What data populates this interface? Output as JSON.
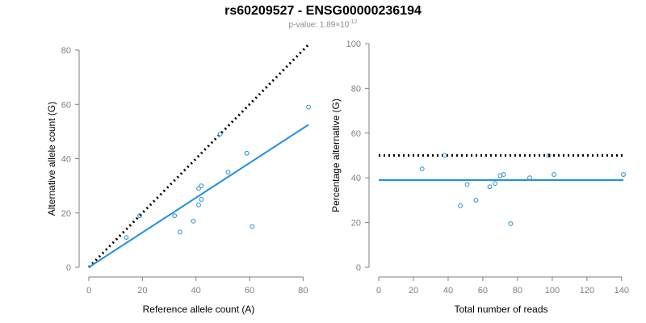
{
  "title": "rs60209527 - ENSG00000236194",
  "subtitle": {
    "prefix": "p-value: 1.89×10",
    "exponent": "-12"
  },
  "colors": {
    "points": "#1f8fd6",
    "fit_line": "#1f8fe6",
    "reference_line": "#000000",
    "axis": "#7f7f7f"
  },
  "chart_data": [
    {
      "type": "scatter",
      "xlabel": "Reference allele count (A)",
      "ylabel": "Alternative allele count (G)",
      "xlim": [
        0,
        82
      ],
      "ylim": [
        0,
        80
      ],
      "xticks": [
        0,
        20,
        40,
        60,
        80
      ],
      "yticks": [
        0,
        20,
        40,
        60,
        80
      ],
      "grid": false,
      "points": [
        {
          "x": 14,
          "y": 11
        },
        {
          "x": 19,
          "y": 19
        },
        {
          "x": 32,
          "y": 19
        },
        {
          "x": 34,
          "y": 13
        },
        {
          "x": 39,
          "y": 17
        },
        {
          "x": 41,
          "y": 23
        },
        {
          "x": 41,
          "y": 29
        },
        {
          "x": 42,
          "y": 30
        },
        {
          "x": 42,
          "y": 25
        },
        {
          "x": 49,
          "y": 49
        },
        {
          "x": 52,
          "y": 35
        },
        {
          "x": 59,
          "y": 42
        },
        {
          "x": 61,
          "y": 15
        },
        {
          "x": 82,
          "y": 59
        }
      ],
      "fit_line": {
        "x": [
          0,
          82
        ],
        "y": [
          0,
          52.5
        ]
      },
      "reference_line": {
        "x": [
          0,
          82
        ],
        "y": [
          0,
          82
        ],
        "style": "dotted"
      }
    },
    {
      "type": "scatter",
      "xlabel": "Total number of reads",
      "ylabel": "Percentage alternative (G)",
      "xlim": [
        0,
        141
      ],
      "ylim": [
        0,
        100
      ],
      "xticks": [
        0,
        20,
        40,
        60,
        80,
        100,
        120,
        140
      ],
      "yticks": [
        0,
        20,
        40,
        60,
        80,
        100
      ],
      "grid": false,
      "points": [
        {
          "x": 25,
          "y": 44
        },
        {
          "x": 38,
          "y": 50
        },
        {
          "x": 47,
          "y": 27.5
        },
        {
          "x": 51,
          "y": 37
        },
        {
          "x": 56,
          "y": 30
        },
        {
          "x": 64,
          "y": 36
        },
        {
          "x": 67,
          "y": 37.5
        },
        {
          "x": 70,
          "y": 41
        },
        {
          "x": 72,
          "y": 41.5
        },
        {
          "x": 76,
          "y": 19.5
        },
        {
          "x": 87,
          "y": 40
        },
        {
          "x": 98,
          "y": 50
        },
        {
          "x": 101,
          "y": 41.5
        },
        {
          "x": 141,
          "y": 41.5
        }
      ],
      "fit_line": {
        "x": [
          0,
          141
        ],
        "y": [
          39,
          39
        ]
      },
      "reference_line": {
        "x": [
          0,
          141
        ],
        "y": [
          50,
          50
        ],
        "style": "dotted"
      }
    }
  ]
}
